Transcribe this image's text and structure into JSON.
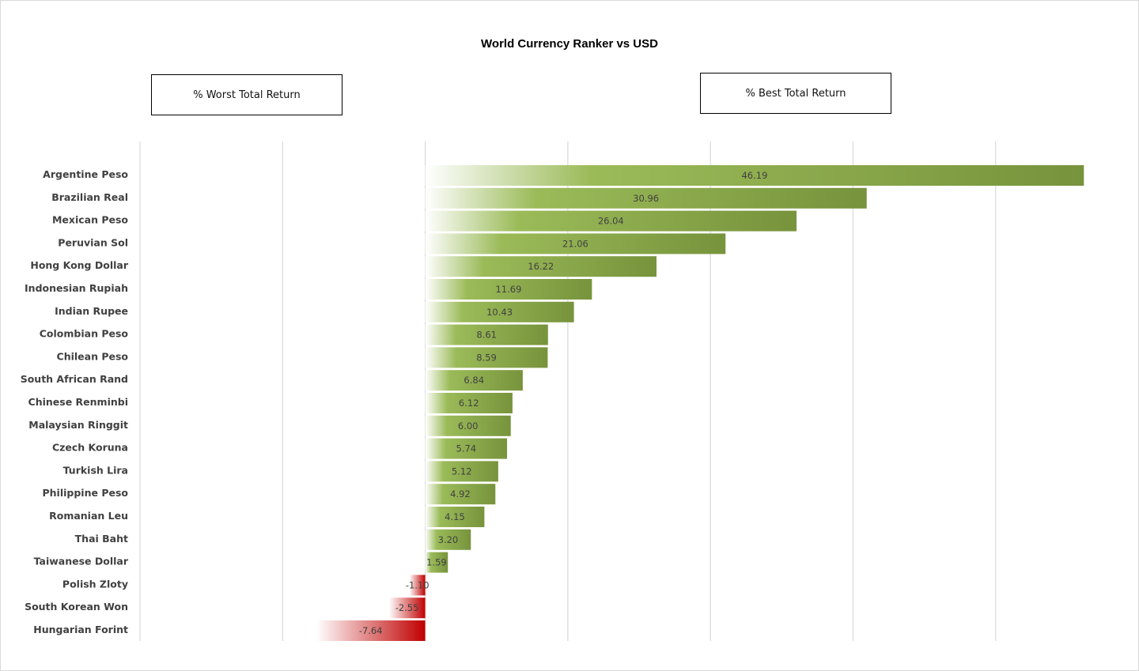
{
  "chart_data": {
    "type": "bar",
    "orientation": "horizontal",
    "title": "World Currency Ranker vs USD",
    "legend_boxes": {
      "worst": "% Worst Total Return",
      "best": "% Best Total Return"
    },
    "categories": [
      "Argentine Peso",
      "Brazilian Real",
      "Mexican Peso",
      "Peruvian Sol",
      "Hong Kong Dollar",
      "Indonesian Rupiah",
      "Indian Rupee",
      "Colombian Peso",
      "Chilean Peso",
      "South African Rand",
      "Chinese Renminbi",
      "Malaysian Ringgit",
      "Czech Koruna",
      "Turkish Lira",
      "Philippine Peso",
      "Romanian Leu",
      "Thai Baht",
      "Taiwanese Dollar",
      "Polish Zloty",
      "South Korean Won",
      "Hungarian Forint"
    ],
    "values": [
      46.19,
      30.96,
      26.04,
      21.06,
      16.22,
      11.69,
      10.43,
      8.61,
      8.59,
      6.84,
      6.12,
      6.0,
      5.74,
      5.12,
      4.92,
      4.15,
      3.2,
      1.59,
      -1.1,
      -2.55,
      -7.64
    ],
    "value_labels": [
      "46.19",
      "30.96",
      "26.04",
      "21.06",
      "16.22",
      "11.69",
      "10.43",
      "8.61",
      "8.59",
      "6.84",
      "6.12",
      "6.00",
      "5.74",
      "5.12",
      "4.92",
      "4.15",
      "3.20",
      "1.59",
      "-1.10",
      "-2.55",
      "-7.64"
    ],
    "xlim": [
      -20,
      50
    ],
    "gridlines": [
      -20,
      -10,
      0,
      10,
      20,
      30,
      40,
      50
    ],
    "grid": true,
    "colors": {
      "positive": "#77933c",
      "positive_light": "#9bbb59",
      "negative": "#c00000",
      "grid": "#d9d9d9",
      "label": "#404040"
    }
  }
}
